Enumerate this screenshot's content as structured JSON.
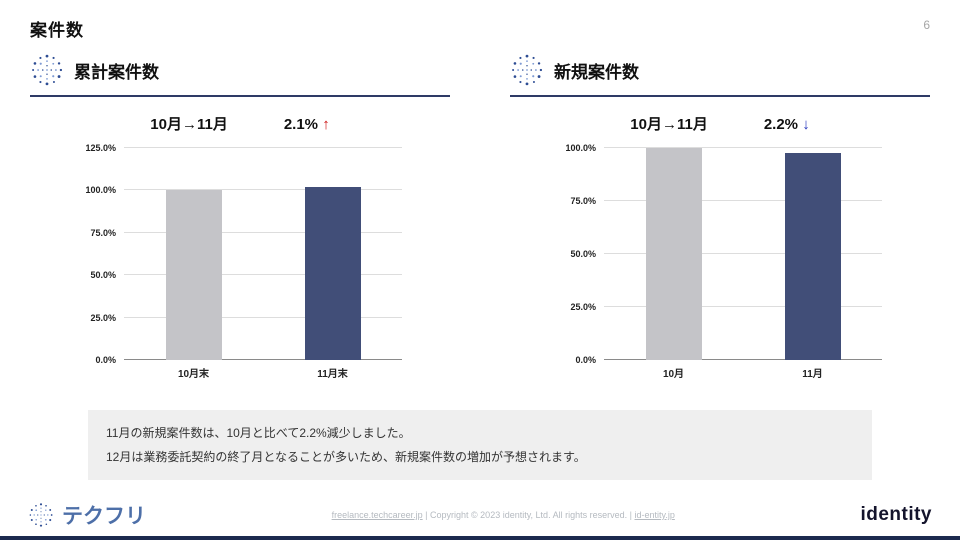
{
  "page": {
    "title": "案件数",
    "page_number": "6"
  },
  "colors": {
    "accent_navy": "#2e3a66",
    "bar_gray": "#c4c4c8",
    "bar_navy": "#414e78",
    "arrow_up": "#cc1111",
    "arrow_down": "#2233bb",
    "note_bg": "#efefef",
    "footer_text": "#b5bac0",
    "logo_blue": "#4d6fa8",
    "brand_dark": "#14142c",
    "bottom_bar": "#1c2a4e"
  },
  "panels": [
    {
      "title": "累計案件数",
      "period": "10月→11月",
      "change": "2.1%",
      "arrow": "↑",
      "direction": "up"
    },
    {
      "title": "新規案件数",
      "period": "10月→11月",
      "change": "2.2%",
      "arrow": "↓",
      "direction": "down"
    }
  ],
  "chart_data": [
    {
      "type": "bar",
      "title": "累計案件数",
      "categories": [
        "10月末",
        "11月末"
      ],
      "values": [
        100.0,
        102.1
      ],
      "ylim": [
        0,
        125
      ],
      "yticks": [
        "0.0%",
        "25.0%",
        "50.0%",
        "75.0%",
        "100.0%",
        "125.0%"
      ],
      "bar_colors": [
        "#c4c4c8",
        "#414e78"
      ],
      "grid": true,
      "legend": false
    },
    {
      "type": "bar",
      "title": "新規案件数",
      "categories": [
        "10月",
        "11月"
      ],
      "values": [
        100.0,
        97.8
      ],
      "ylim": [
        0,
        100
      ],
      "yticks": [
        "0.0%",
        "25.0%",
        "50.0%",
        "75.0%",
        "100.0%"
      ],
      "bar_colors": [
        "#c4c4c8",
        "#414e78"
      ],
      "grid": true,
      "legend": false
    }
  ],
  "note": {
    "lines": [
      "11月の新規案件数は、10月と比べて2.2%減少しました。",
      "12月は業務委託契約の終了月となることが多いため、新規案件数の増加が予想されます。"
    ]
  },
  "footer": {
    "logo_text": "テクフリ",
    "link_left": "freelance.techcareer.jp",
    "separator": "|",
    "copyright": "Copyright © 2023 identity, Ltd. All rights reserved.",
    "link_right": "id-entity.jp",
    "brand": "identity"
  }
}
